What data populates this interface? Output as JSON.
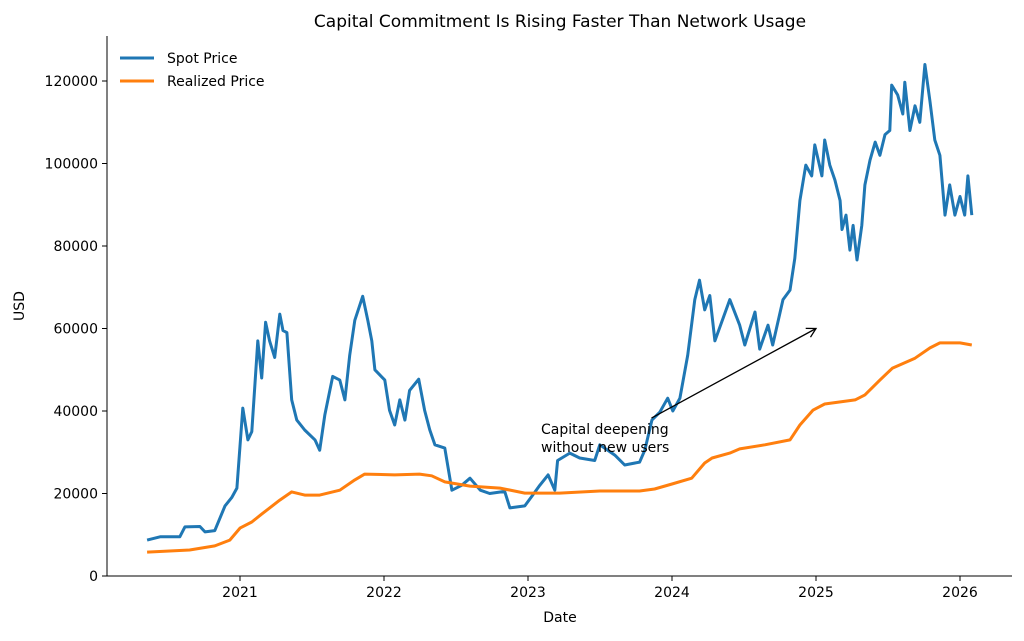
{
  "chart_data": {
    "type": "line",
    "title": "Capital Commitment Is Rising Faster Than Network Usage",
    "xlabel": "Date",
    "ylabel": "USD",
    "xlim": [
      "2020-01-28",
      "2026-05-10"
    ],
    "ylim": [
      0,
      131000
    ],
    "x_ticks": [
      "2021",
      "2022",
      "2023",
      "2024",
      "2025",
      "2026"
    ],
    "y_ticks": [
      0,
      20000,
      40000,
      60000,
      80000,
      100000,
      120000
    ],
    "y_tick_labels": [
      "0",
      "20000",
      "40000",
      "60000",
      "80000",
      "100000",
      "120000"
    ],
    "grid": false,
    "legend": "top-left",
    "series": [
      {
        "name": "Spot Price",
        "color": "#1f77b4",
        "points": [
          [
            "2020-05-10",
            8700
          ],
          [
            "2020-06-12",
            9500
          ],
          [
            "2020-08-01",
            9500
          ],
          [
            "2020-08-14",
            11900
          ],
          [
            "2020-09-21",
            12000
          ],
          [
            "2020-10-04",
            10700
          ],
          [
            "2020-10-29",
            11000
          ],
          [
            "2020-11-24",
            17000
          ],
          [
            "2020-12-11",
            19000
          ],
          [
            "2020-12-24",
            21300
          ],
          [
            "2021-01-08",
            40700
          ],
          [
            "2021-01-21",
            33000
          ],
          [
            "2021-01-31",
            35000
          ],
          [
            "2021-02-15",
            57000
          ],
          [
            "2021-02-25",
            48000
          ],
          [
            "2021-03-07",
            61500
          ],
          [
            "2021-03-17",
            57000
          ],
          [
            "2021-03-30",
            53000
          ],
          [
            "2021-04-12",
            63500
          ],
          [
            "2021-04-20",
            59500
          ],
          [
            "2021-04-30",
            59000
          ],
          [
            "2021-05-12",
            42700
          ],
          [
            "2021-05-25",
            37800
          ],
          [
            "2021-06-14",
            35400
          ],
          [
            "2021-07-10",
            33000
          ],
          [
            "2021-07-22",
            30500
          ],
          [
            "2021-08-04",
            39000
          ],
          [
            "2021-08-24",
            48400
          ],
          [
            "2021-09-11",
            47500
          ],
          [
            "2021-09-24",
            42700
          ],
          [
            "2021-10-06",
            53500
          ],
          [
            "2021-10-19",
            62000
          ],
          [
            "2021-11-08",
            67800
          ],
          [
            "2021-11-21",
            62000
          ],
          [
            "2021-12-01",
            57000
          ],
          [
            "2021-12-09",
            50000
          ],
          [
            "2022-01-03",
            47500
          ],
          [
            "2022-01-15",
            40200
          ],
          [
            "2022-01-28",
            36600
          ],
          [
            "2022-02-10",
            42700
          ],
          [
            "2022-02-23",
            37800
          ],
          [
            "2022-03-07",
            45000
          ],
          [
            "2022-03-30",
            47700
          ],
          [
            "2022-04-14",
            40200
          ],
          [
            "2022-04-27",
            35400
          ],
          [
            "2022-05-10",
            31800
          ],
          [
            "2022-06-04",
            31000
          ],
          [
            "2022-06-22",
            20800
          ],
          [
            "2022-07-17",
            22000
          ],
          [
            "2022-08-07",
            23700
          ],
          [
            "2022-09-02",
            20800
          ],
          [
            "2022-09-26",
            20000
          ],
          [
            "2022-11-03",
            20500
          ],
          [
            "2022-11-16",
            16500
          ],
          [
            "2022-12-24",
            17000
          ],
          [
            "2023-01-13",
            19600
          ],
          [
            "2023-01-31",
            22000
          ],
          [
            "2023-02-21",
            24500
          ],
          [
            "2023-03-10",
            20800
          ],
          [
            "2023-03-17",
            28000
          ],
          [
            "2023-04-17",
            29800
          ],
          [
            "2023-05-12",
            28600
          ],
          [
            "2023-06-19",
            28000
          ],
          [
            "2023-07-02",
            31800
          ],
          [
            "2023-08-09",
            29300
          ],
          [
            "2023-09-03",
            26900
          ],
          [
            "2023-10-11",
            27600
          ],
          [
            "2023-10-24",
            30500
          ],
          [
            "2023-11-11",
            37800
          ],
          [
            "2023-12-01",
            39700
          ],
          [
            "2023-12-21",
            43100
          ],
          [
            "2024-01-03",
            40000
          ],
          [
            "2024-01-21",
            43100
          ],
          [
            "2024-02-10",
            53500
          ],
          [
            "2024-02-28",
            67000
          ],
          [
            "2024-03-11",
            71700
          ],
          [
            "2024-03-24",
            64500
          ],
          [
            "2024-04-06",
            68000
          ],
          [
            "2024-04-19",
            57000
          ],
          [
            "2024-05-27",
            67000
          ],
          [
            "2024-06-21",
            60800
          ],
          [
            "2024-07-04",
            56000
          ],
          [
            "2024-07-30",
            64000
          ],
          [
            "2024-08-11",
            55000
          ],
          [
            "2024-09-01",
            60800
          ],
          [
            "2024-09-13",
            56000
          ],
          [
            "2024-10-09",
            67000
          ],
          [
            "2024-10-27",
            69300
          ],
          [
            "2024-11-08",
            77000
          ],
          [
            "2024-11-21",
            91000
          ],
          [
            "2024-12-06",
            99600
          ],
          [
            "2024-12-21",
            97000
          ],
          [
            "2024-12-29",
            104500
          ],
          [
            "2025-01-16",
            97000
          ],
          [
            "2025-01-23",
            105700
          ],
          [
            "2025-02-05",
            99600
          ],
          [
            "2025-02-18",
            96000
          ],
          [
            "2025-03-03",
            91000
          ],
          [
            "2025-03-08",
            84000
          ],
          [
            "2025-03-18",
            87500
          ],
          [
            "2025-03-28",
            79000
          ],
          [
            "2025-04-05",
            85000
          ],
          [
            "2025-04-15",
            76600
          ],
          [
            "2025-04-27",
            85000
          ],
          [
            "2025-05-05",
            94800
          ],
          [
            "2025-05-18",
            100800
          ],
          [
            "2025-05-31",
            105200
          ],
          [
            "2025-06-12",
            102000
          ],
          [
            "2025-06-25",
            107000
          ],
          [
            "2025-07-07",
            108000
          ],
          [
            "2025-07-12",
            119000
          ],
          [
            "2025-07-27",
            116600
          ],
          [
            "2025-08-09",
            112000
          ],
          [
            "2025-08-14",
            119700
          ],
          [
            "2025-08-27",
            108000
          ],
          [
            "2025-09-09",
            114000
          ],
          [
            "2025-09-21",
            110000
          ],
          [
            "2025-10-04",
            124000
          ],
          [
            "2025-10-17",
            115000
          ],
          [
            "2025-10-29",
            105700
          ],
          [
            "2025-11-11",
            102000
          ],
          [
            "2025-11-24",
            87500
          ],
          [
            "2025-12-06",
            94800
          ],
          [
            "2025-12-19",
            87500
          ],
          [
            "2026-01-01",
            92000
          ],
          [
            "2026-01-13",
            87500
          ],
          [
            "2026-01-21",
            97000
          ],
          [
            "2026-01-31",
            87500
          ]
        ]
      },
      {
        "name": "Realized Price",
        "color": "#ff7f0e",
        "points": [
          [
            "2020-05-10",
            5800
          ],
          [
            "2020-08-26",
            6300
          ],
          [
            "2020-10-29",
            7300
          ],
          [
            "2020-12-06",
            8700
          ],
          [
            "2021-01-01",
            11600
          ],
          [
            "2021-01-31",
            13100
          ],
          [
            "2021-02-25",
            15000
          ],
          [
            "2021-04-12",
            18400
          ],
          [
            "2021-05-12",
            20400
          ],
          [
            "2021-06-14",
            19600
          ],
          [
            "2021-07-22",
            19600
          ],
          [
            "2021-09-11",
            20800
          ],
          [
            "2021-10-19",
            23300
          ],
          [
            "2021-11-13",
            24700
          ],
          [
            "2022-01-28",
            24500
          ],
          [
            "2022-04-01",
            24700
          ],
          [
            "2022-05-02",
            24300
          ],
          [
            "2022-06-04",
            22800
          ],
          [
            "2022-08-07",
            21800
          ],
          [
            "2022-10-22",
            21300
          ],
          [
            "2022-12-24",
            20100
          ],
          [
            "2023-03-22",
            20100
          ],
          [
            "2023-07-02",
            20600
          ],
          [
            "2023-10-11",
            20600
          ],
          [
            "2023-11-18",
            21100
          ],
          [
            "2024-01-01",
            22300
          ],
          [
            "2024-02-20",
            23700
          ],
          [
            "2024-03-24",
            27400
          ],
          [
            "2024-04-12",
            28600
          ],
          [
            "2024-05-27",
            29800
          ],
          [
            "2024-06-21",
            30800
          ],
          [
            "2024-08-24",
            31800
          ],
          [
            "2024-10-27",
            33000
          ],
          [
            "2024-11-21",
            36600
          ],
          [
            "2024-12-24",
            40200
          ],
          [
            "2025-01-23",
            41700
          ],
          [
            "2025-04-10",
            42700
          ],
          [
            "2025-05-05",
            43900
          ],
          [
            "2025-06-12",
            47500
          ],
          [
            "2025-07-14",
            50400
          ],
          [
            "2025-09-09",
            52800
          ],
          [
            "2025-10-17",
            55300
          ],
          [
            "2025-11-11",
            56500
          ],
          [
            "2026-01-01",
            56500
          ],
          [
            "2026-01-31",
            56000
          ]
        ]
      }
    ],
    "annotations": [
      {
        "text_lines": [
          "Capital deepening",
          "without new users"
        ],
        "arrow_from": [
          "2023-11-10",
          38300
        ],
        "arrow_to": [
          "2025-01-01",
          60000
        ]
      }
    ]
  }
}
